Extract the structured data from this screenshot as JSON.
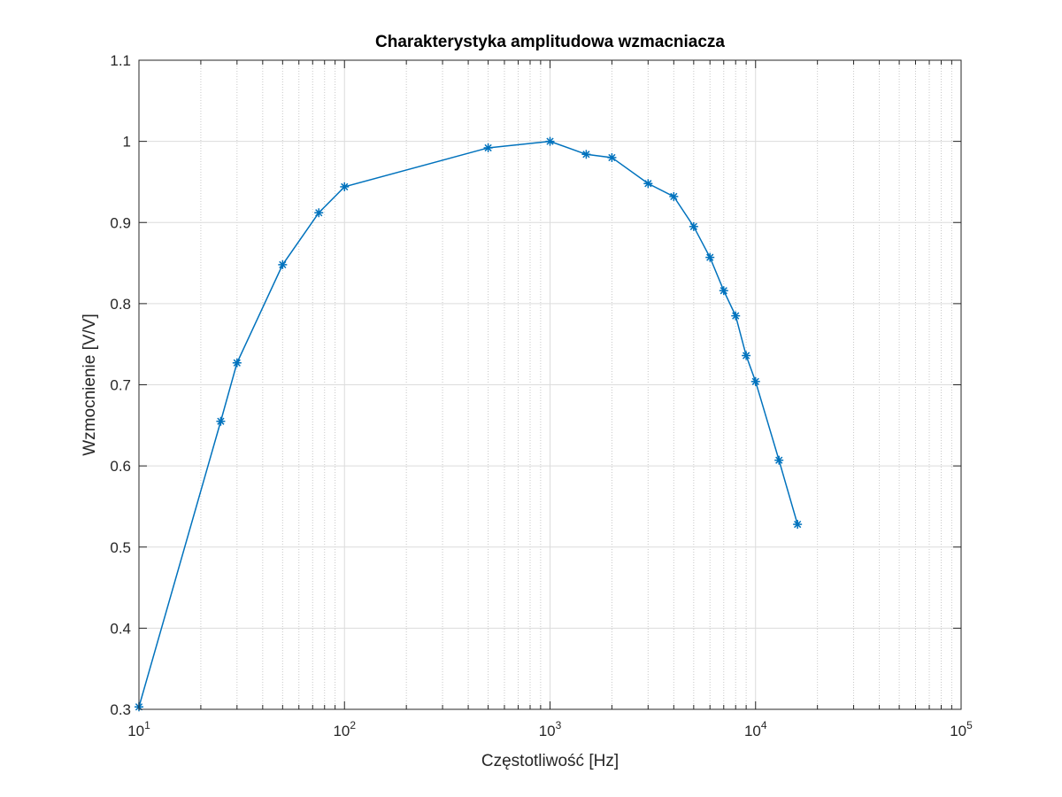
{
  "chart_data": {
    "type": "line",
    "title": "Charakterystyka amplitudowa wzmacniacza",
    "xlabel": "Częstotliwość [Hz]",
    "ylabel": "Wzmocnienie [V/V]",
    "xscale": "log",
    "xlim": [
      10,
      100000
    ],
    "ylim": [
      0.3,
      1.1
    ],
    "grid": true,
    "minor_grid": true,
    "marker": "asterisk",
    "line_color": "#0072BD",
    "x_ticks": [
      {
        "value": 10,
        "base": "10",
        "exp": "1"
      },
      {
        "value": 100,
        "base": "10",
        "exp": "2"
      },
      {
        "value": 1000,
        "base": "10",
        "exp": "3"
      },
      {
        "value": 10000,
        "base": "10",
        "exp": "4"
      },
      {
        "value": 100000,
        "base": "10",
        "exp": "5"
      }
    ],
    "y_ticks": [
      {
        "value": 0.3,
        "label": "0.3"
      },
      {
        "value": 0.4,
        "label": "0.4"
      },
      {
        "value": 0.5,
        "label": "0.5"
      },
      {
        "value": 0.6,
        "label": "0.6"
      },
      {
        "value": 0.7,
        "label": "0.7"
      },
      {
        "value": 0.8,
        "label": "0.8"
      },
      {
        "value": 0.9,
        "label": "0.9"
      },
      {
        "value": 1.0,
        "label": "1"
      },
      {
        "value": 1.1,
        "label": "1.1"
      }
    ],
    "series": [
      {
        "x": [
          10,
          25,
          30,
          50,
          75,
          100,
          500,
          1000,
          1500,
          2000,
          3000,
          4000,
          5000,
          6000,
          7000,
          8000,
          9000,
          10000,
          13000,
          16000
        ],
        "y": [
          0.303,
          0.655,
          0.727,
          0.848,
          0.912,
          0.944,
          0.992,
          1.0,
          0.984,
          0.98,
          0.948,
          0.932,
          0.895,
          0.857,
          0.816,
          0.785,
          0.736,
          0.704,
          0.607,
          0.528
        ]
      }
    ]
  }
}
